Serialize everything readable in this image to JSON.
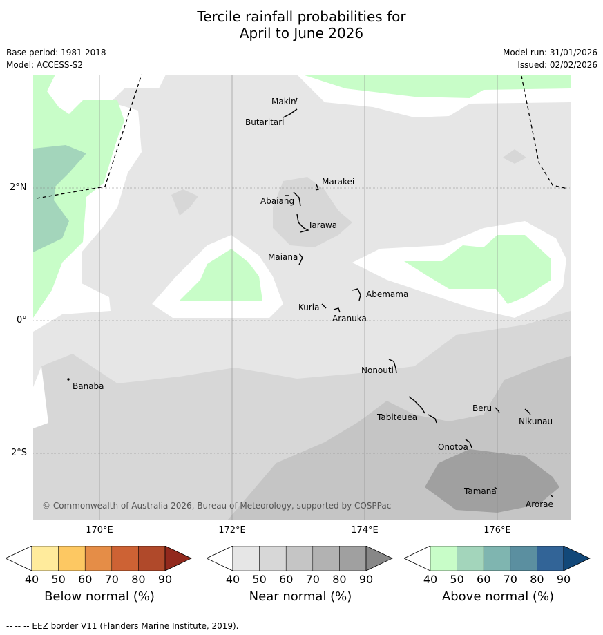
{
  "title_line1": "Tercile rainfall probabilities for",
  "title_line2": "April to June 2026",
  "meta": {
    "base_period": "Base period: 1981-2018",
    "model": "Model: ACCESS-S2",
    "model_run": "Model run: 31/01/2026",
    "issued": "Issued: 02/02/2026"
  },
  "lat_labels": [
    "2°N",
    "0°",
    "2°S"
  ],
  "lon_labels": [
    "170°E",
    "172°E",
    "174°E",
    "176°E"
  ],
  "copyright": "© Commonwealth of Australia 2026, Bureau of Meteorology, supported by COSPPac",
  "islands": [
    "Makin",
    "Butaritari",
    "Marakei",
    "Abaiang",
    "Tarawa",
    "Maiana",
    "Abemama",
    "Kuria",
    "Aranuka",
    "Nonouti",
    "Banaba",
    "Beru",
    "Tabiteuea",
    "Nikunau",
    "Onotoa",
    "Tamana",
    "Arorae"
  ],
  "colorbars": [
    {
      "title": "Below normal (%)",
      "ticks": [
        "40",
        "50",
        "60",
        "70",
        "80",
        "90"
      ],
      "colors": [
        "#ffffff",
        "#ffeb9c",
        "#fdc862",
        "#e58d47",
        "#cd6234",
        "#b0492a",
        "#92291d"
      ]
    },
    {
      "title": "Near normal (%)",
      "ticks": [
        "40",
        "50",
        "60",
        "70",
        "80",
        "90"
      ],
      "colors": [
        "#ffffff",
        "#e6e6e6",
        "#d7d7d7",
        "#c5c5c5",
        "#b2b2b2",
        "#a0a0a0",
        "#878787"
      ]
    },
    {
      "title": "Above normal (%)",
      "ticks": [
        "40",
        "50",
        "60",
        "70",
        "80",
        "90"
      ],
      "colors": [
        "#ffffff",
        "#c8fdc8",
        "#a3d5bb",
        "#7fb5b0",
        "#5b8fa0",
        "#326497",
        "#124879"
      ]
    }
  ],
  "footer": "-- -- -- EEZ border V11 (Flanders Marine Institute, 2019)."
}
